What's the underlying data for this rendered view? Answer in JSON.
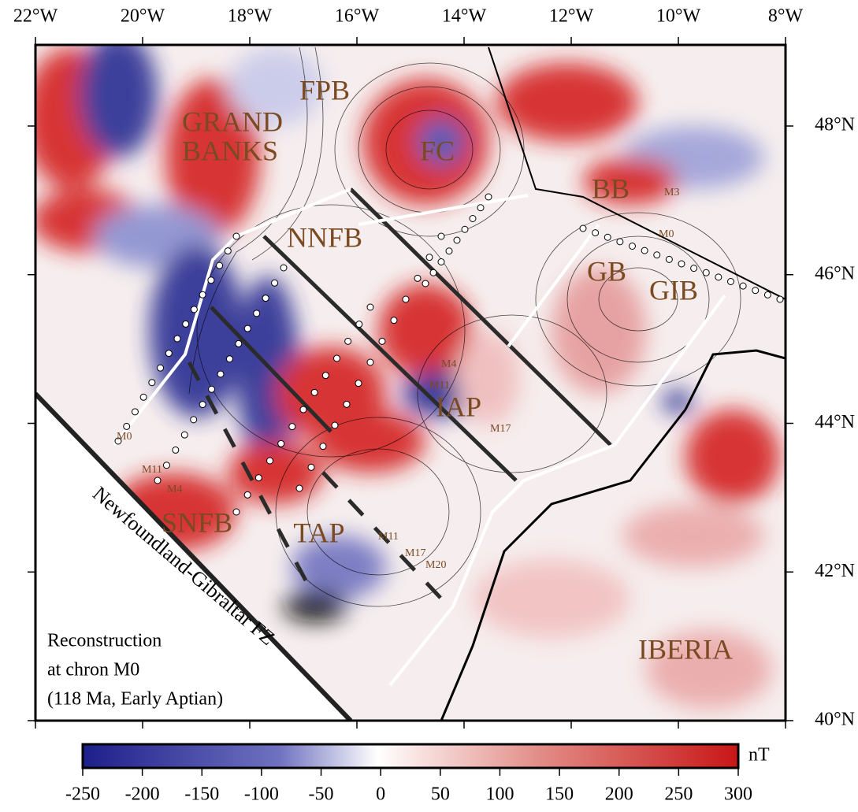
{
  "map": {
    "lon_ticks": [
      {
        "value": -22,
        "label": "22°W"
      },
      {
        "value": -20,
        "label": "20°W"
      },
      {
        "value": -18,
        "label": "18°W"
      },
      {
        "value": -16,
        "label": "16°W"
      },
      {
        "value": -14,
        "label": "14°W"
      },
      {
        "value": -12,
        "label": "12°W"
      },
      {
        "value": -10,
        "label": "10°W"
      },
      {
        "value": -8,
        "label": "8°W"
      }
    ],
    "lat_ticks": [
      {
        "value": 48,
        "label": "48°N"
      },
      {
        "value": 46,
        "label": "46°N"
      },
      {
        "value": 44,
        "label": "44°N"
      },
      {
        "value": 42,
        "label": "42°N"
      },
      {
        "value": 40,
        "label": "40°N"
      }
    ],
    "places": {
      "fpb": "FPB",
      "grand_banks": [
        "GRAND",
        "BANKS"
      ],
      "fc": "FC",
      "bb": "BB",
      "nnfb": "NNFB",
      "gb": "GB",
      "gib": "GIB",
      "iap": "IAP",
      "snfb": "SNFB",
      "tap": "TAP",
      "iberia": "IBERIA"
    },
    "chrons": {
      "ne_m3": "M3",
      "ne_m0": "M0",
      "iap_m4": "M4",
      "iap_m11": "M11",
      "iap_m17": "M17",
      "w_m0": "M0",
      "w_m11": "M11",
      "w_m4": "M4",
      "tap_m11": "M11",
      "tap_m17": "M17",
      "tap_m20": "M20"
    },
    "fracture_zone": "Newfoundland-Gibraltar FZ",
    "caption": [
      "Reconstruction",
      "at chron M0",
      "(118 Ma, Early Aptian)"
    ],
    "colorbar": {
      "unit": "nT",
      "ticks": [
        -250,
        -200,
        -150,
        -100,
        -50,
        0,
        50,
        100,
        150,
        200,
        250,
        300
      ]
    }
  }
}
